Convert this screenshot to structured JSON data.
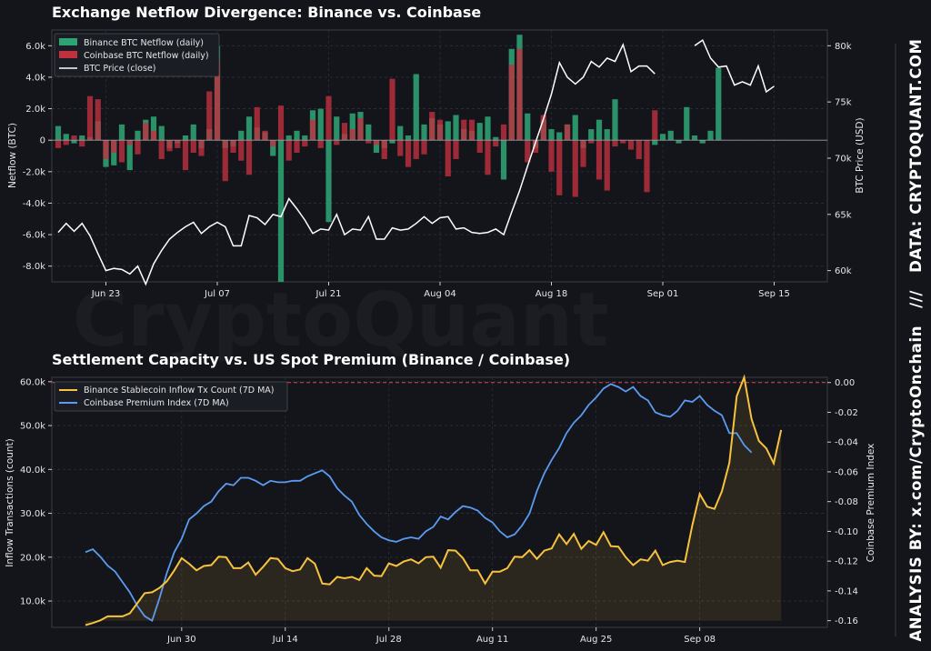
{
  "watermark": "CryptoQuant",
  "side_credit": "ANALYSIS BY: x.com/CryptoOnchain   ///   DATA: CRYPTOQUANT.COM",
  "colors": {
    "background": "#13151b",
    "binance_green": "#2ea374",
    "coinbase_red": "#c0303f",
    "price_white": "#ffffff",
    "stable_gold": "#f7c23e",
    "premium_blue": "#5b9bf0",
    "zero_dashed": "#d9464c"
  },
  "chart_data": [
    {
      "type": "bar",
      "title": "Exchange Netflow Divergence: Binance vs. Coinbase",
      "ylabel": "Netflow (BTC)",
      "y2label": "BTC Price (USD)",
      "ylim": [
        -9000,
        7000
      ],
      "y2lim": [
        59000,
        81400
      ],
      "yticks": [
        "-8.0k",
        "-6.0k",
        "-4.0k",
        "-2.0k",
        "0",
        "2.0k",
        "4.0k",
        "6.0k"
      ],
      "ytick_values": [
        -8000,
        -6000,
        -4000,
        -2000,
        0,
        2000,
        4000,
        6000
      ],
      "y2ticks": [
        "60k",
        "65k",
        "70k",
        "75k",
        "80k"
      ],
      "y2tick_values": [
        60000,
        65000,
        70000,
        75000,
        80000
      ],
      "xticks": [
        "Jun 23",
        "Jul 07",
        "Jul 21",
        "Aug 04",
        "Aug 18",
        "Sep 01",
        "Sep 15"
      ],
      "xtick_days": [
        6,
        20,
        34,
        48,
        62,
        76,
        90
      ],
      "x_start": "2024-06-17",
      "legend": [
        "Binance BTC Netflow (daily)",
        "Coinbase BTC Netflow (daily)",
        "BTC Price (close)"
      ],
      "series": [
        {
          "name": "Binance BTC Netflow (daily)",
          "values": [
            900,
            400,
            -200,
            300,
            200,
            1200,
            -1700,
            -1600,
            1000,
            -1900,
            600,
            1300,
            1500,
            900,
            -500,
            -200,
            300,
            1000,
            -500,
            700,
            6000,
            -500,
            -400,
            600,
            1500,
            800,
            500,
            -1000,
            -9000,
            300,
            600,
            300,
            1900,
            2000,
            -5200,
            1500,
            400,
            1700,
            1800,
            1000,
            -800,
            -500,
            -200,
            900,
            300,
            4200,
            1000,
            1400,
            1000,
            1200,
            1600,
            700,
            600,
            1100,
            1500,
            200,
            -2500,
            5800,
            6700,
            1700,
            -500,
            1300,
            700,
            500,
            1000,
            1600,
            -500,
            700,
            1300,
            700,
            2600,
            null,
            null,
            null,
            null,
            -300,
            400,
            600,
            -200,
            2100,
            300,
            -200,
            600,
            4600
          ]
        },
        {
          "name": "Coinbase BTC Netflow (daily)",
          "values": [
            -500,
            -300,
            300,
            -400,
            2800,
            2600,
            -1200,
            -800,
            -1400,
            -300,
            -900,
            1100,
            600,
            -1200,
            -700,
            -500,
            -1900,
            -800,
            -1000,
            3100,
            5100,
            -2600,
            -800,
            -1300,
            -2200,
            2100,
            600,
            -400,
            2200,
            -1300,
            -800,
            -400,
            1300,
            -500,
            2800,
            -300,
            1100,
            700,
            1400,
            -200,
            -300,
            -1200,
            3900,
            -1000,
            -1700,
            -1200,
            -900,
            1800,
            1300,
            -2300,
            -1200,
            1300,
            1300,
            -800,
            -2200,
            -400,
            1000,
            4800,
            5800,
            -1400,
            -800,
            1600,
            -2000,
            -3500,
            1000,
            -3600,
            -1700,
            -200,
            -2500,
            -3200,
            -400,
            -200,
            -600,
            -1200,
            -3300,
            1900
          ]
        },
        {
          "name": "BTC Price (close)",
          "values": [
            63400,
            64200,
            63500,
            64200,
            63100,
            61500,
            60000,
            60200,
            60100,
            59700,
            60400,
            58800,
            60600,
            61800,
            62800,
            63400,
            63900,
            64300,
            63300,
            63900,
            64300,
            63900,
            62200,
            62200,
            64900,
            64700,
            64100,
            65000,
            64800,
            66400,
            65500,
            64500,
            63300,
            63700,
            63600,
            65000,
            63200,
            63700,
            63600,
            64800,
            62800,
            62800,
            63800,
            63600,
            63700,
            64200,
            64800,
            64200,
            64700,
            64800,
            63700,
            63800,
            63400,
            63300,
            63400,
            63700,
            63200,
            65200,
            67100,
            69300,
            71400,
            73500,
            75700,
            78500,
            77200,
            76600,
            77200,
            78600,
            78100,
            78900,
            78600,
            80100,
            77700,
            78200,
            78200,
            77500,
            null,
            null,
            null,
            null,
            80000,
            80500,
            78900,
            78100,
            78200,
            76500,
            76800,
            76500,
            78200,
            75900,
            76400
          ]
        }
      ]
    },
    {
      "type": "area",
      "title": "Settlement Capacity vs. US Spot Premium (Binance / Coinbase)",
      "ylabel": "Inflow Transactions (count)",
      "y2label": "Coinbase Premium Index",
      "ylim": [
        4000,
        61000
      ],
      "y2lim": [
        -0.1645,
        0.0035
      ],
      "yticks": [
        "10.0k",
        "20.0k",
        "30.0k",
        "40.0k",
        "50.0k",
        "60.0k"
      ],
      "ytick_values": [
        10000,
        20000,
        30000,
        40000,
        50000,
        60000
      ],
      "y2ticks": [
        "-0.16",
        "-0.14",
        "-0.12",
        "-0.10",
        "-0.08",
        "-0.06",
        "-0.04",
        "-0.02",
        "0.00"
      ],
      "y2tick_values": [
        -0.16,
        -0.14,
        -0.12,
        -0.1,
        -0.08,
        -0.06,
        -0.04,
        -0.02,
        0.0
      ],
      "xticks": [
        "Jun 30",
        "Jul 14",
        "Jul 28",
        "Aug 11",
        "Aug 25",
        "Sep 08"
      ],
      "xtick_days": [
        13,
        27,
        41,
        55,
        69,
        83
      ],
      "x_start": "2024-06-17",
      "zero_line": 0.0,
      "legend": [
        "Binance Stablecoin Inflow Tx Count (7D MA)",
        "Coinbase Premium Index (7D MA)"
      ],
      "series": [
        {
          "name": "Binance Stablecoin Inflow Tx Count (7D MA)",
          "values": [
            4500,
            5000,
            5600,
            6500,
            6500,
            6500,
            7200,
            9500,
            11800,
            12000,
            13000,
            14500,
            17000,
            19800,
            18500,
            17000,
            18000,
            18200,
            20100,
            20000,
            17500,
            17500,
            18800,
            16000,
            17800,
            19800,
            19600,
            17500,
            16800,
            17200,
            19800,
            18500,
            14000,
            13800,
            15500,
            15200,
            15500,
            14800,
            17500,
            15800,
            15700,
            18600,
            18000,
            19000,
            19500,
            18600,
            20000,
            20100,
            17600,
            21600,
            21500,
            19800,
            17000,
            17000,
            14000,
            16700,
            16700,
            17500,
            20100,
            20000,
            21600,
            19600,
            21500,
            22000,
            25200,
            23000,
            25300,
            21900,
            23700,
            22800,
            25700,
            22500,
            22400,
            20000,
            18200,
            19500,
            19200,
            21500,
            18200,
            18900,
            19200,
            18900,
            27300,
            34400,
            31500,
            31000,
            35000,
            41500,
            56700,
            61000,
            51500,
            46500,
            44800,
            41400,
            49000
          ]
        },
        {
          "name": "Coinbase Premium Index (7D MA)",
          "values": [
            -0.114,
            -0.112,
            -0.117,
            -0.123,
            -0.127,
            -0.134,
            -0.141,
            -0.15,
            -0.157,
            -0.16,
            -0.145,
            -0.128,
            -0.114,
            -0.105,
            -0.092,
            -0.088,
            -0.083,
            -0.08,
            -0.073,
            -0.068,
            -0.069,
            -0.064,
            -0.064,
            -0.066,
            -0.069,
            -0.066,
            -0.067,
            -0.067,
            -0.066,
            -0.066,
            -0.063,
            -0.061,
            -0.059,
            -0.063,
            -0.071,
            -0.076,
            -0.08,
            -0.089,
            -0.095,
            -0.1,
            -0.104,
            -0.106,
            -0.107,
            -0.105,
            -0.104,
            -0.105,
            -0.1,
            -0.097,
            -0.09,
            -0.092,
            -0.087,
            -0.083,
            -0.084,
            -0.086,
            -0.091,
            -0.094,
            -0.1,
            -0.104,
            -0.102,
            -0.096,
            -0.088,
            -0.073,
            -0.061,
            -0.052,
            -0.044,
            -0.034,
            -0.027,
            -0.022,
            -0.015,
            -0.01,
            -0.004,
            -0.001,
            -0.003,
            -0.006,
            -0.003,
            -0.009,
            -0.012,
            -0.02,
            -0.022,
            -0.023,
            -0.019,
            -0.012,
            -0.013,
            -0.009,
            -0.015,
            -0.019,
            -0.022,
            -0.034,
            -0.034,
            -0.042,
            -0.047
          ]
        }
      ]
    }
  ]
}
